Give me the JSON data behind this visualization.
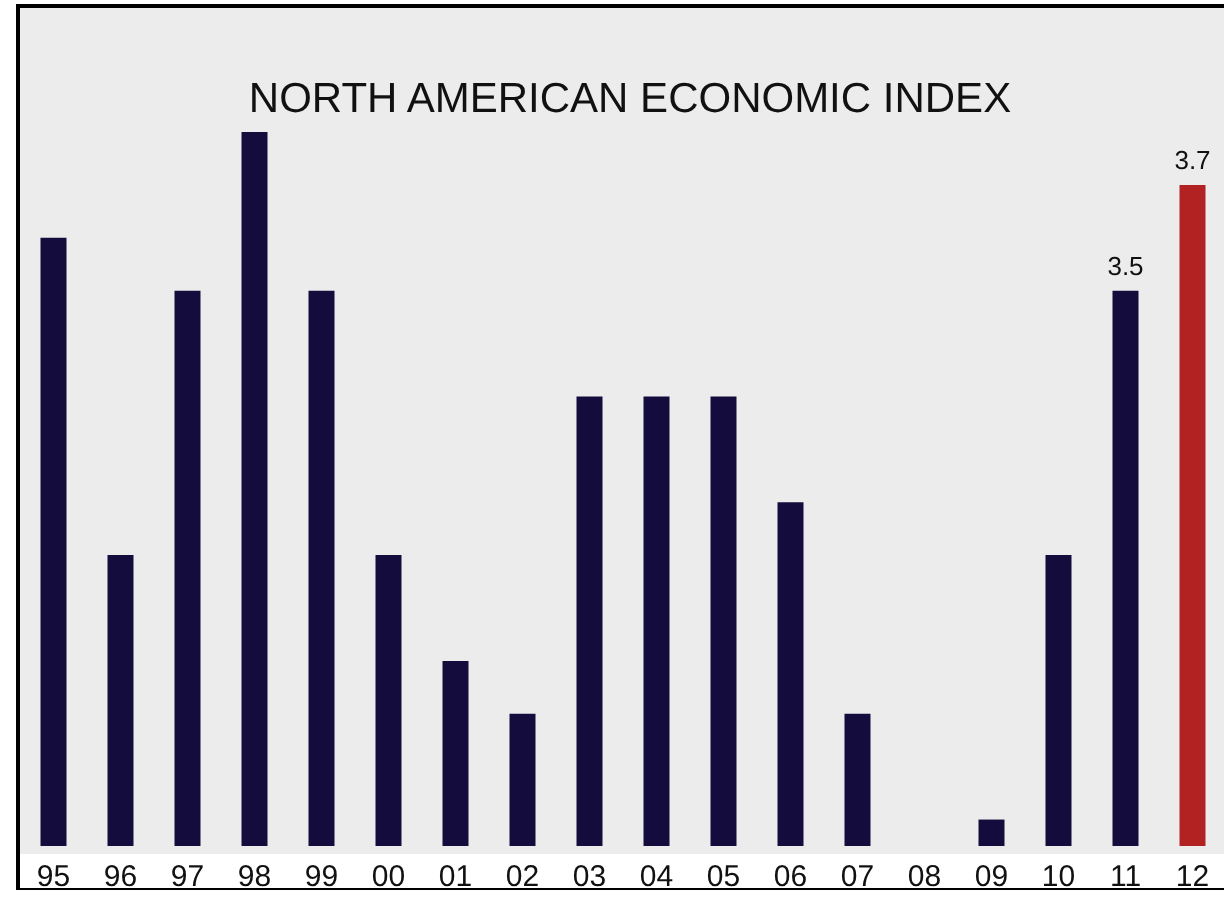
{
  "chart_data": {
    "type": "bar",
    "title": "NORTH AMERICAN ECONOMIC INDEX",
    "categories": [
      "95",
      "96",
      "97",
      "98",
      "99",
      "00",
      "01",
      "02",
      "03",
      "04",
      "05",
      "06",
      "07",
      "08",
      "09",
      "10",
      "11",
      "12"
    ],
    "values": [
      3.6,
      3.0,
      3.5,
      3.8,
      3.5,
      3.0,
      2.8,
      2.7,
      3.3,
      3.3,
      3.3,
      3.1,
      2.7,
      2.45,
      2.5,
      3.0,
      3.5,
      3.7
    ],
    "colors": [
      "#140c3c",
      "#140c3c",
      "#140c3c",
      "#140c3c",
      "#140c3c",
      "#140c3c",
      "#140c3c",
      "#140c3c",
      "#140c3c",
      "#140c3c",
      "#140c3c",
      "#140c3c",
      "#140c3c",
      "#140c3c",
      "#140c3c",
      "#140c3c",
      "#140c3c",
      "#b22222"
    ],
    "value_labels": [
      null,
      null,
      null,
      null,
      null,
      null,
      null,
      null,
      null,
      null,
      null,
      null,
      null,
      null,
      null,
      null,
      "3.5",
      "3.7"
    ],
    "ylim": [
      2.45,
      3.8
    ]
  }
}
